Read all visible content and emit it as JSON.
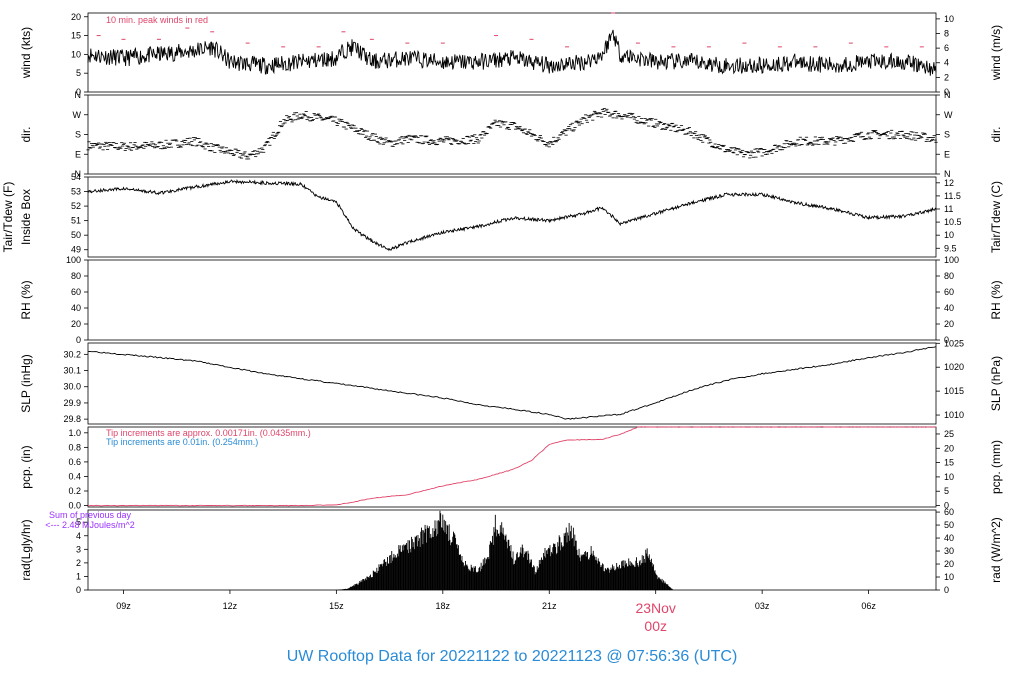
{
  "chart_data": {
    "type": "line",
    "title": "UW Rooftop Data for 20221122  to  20221123 @ 07:56:36  (UTC)",
    "x_axis": {
      "tick_labels": [
        "09z",
        "12z",
        "15z",
        "18z",
        "21z",
        "00z",
        "03z",
        "06z"
      ],
      "tick_hours": [
        9,
        12,
        15,
        18,
        21,
        24,
        27,
        30
      ],
      "range_hours": [
        8.0,
        31.9
      ],
      "date_label": "23Nov",
      "date_sub_label": "00z"
    },
    "panels": [
      {
        "id": "wind",
        "left_label": "wind (kts)",
        "right_label": "wind (m/s)",
        "left_ylim": [
          0,
          21
        ],
        "left_ticks": [
          0,
          5,
          10,
          15,
          20
        ],
        "right_ticks": [
          0,
          2,
          4,
          6,
          8,
          10
        ],
        "right_factor": 0.5144,
        "annotation": "10 min. peak winds in red",
        "annotation_color": "#e0456a",
        "series_color": "#000000",
        "peak_color": "#e0456a",
        "x": [
          8.0,
          9.0,
          10.0,
          11.0,
          11.5,
          12.0,
          13.0,
          14.0,
          15.0,
          15.2,
          15.5,
          16.0,
          17.0,
          18.0,
          19.0,
          20.0,
          21.0,
          22.0,
          22.5,
          22.8,
          23.0,
          24.0,
          25.0,
          26.0,
          27.0,
          28.0,
          29.0,
          30.0,
          31.0,
          31.9
        ],
        "y": [
          10,
          9,
          10,
          11,
          12,
          8,
          7,
          8,
          9,
          11,
          12,
          8,
          9,
          8,
          8,
          9,
          7,
          8,
          10,
          16,
          10,
          8,
          8,
          7,
          7,
          8,
          7,
          8,
          8,
          6
        ],
        "peaks_x": [
          8.3,
          9.0,
          10.0,
          10.8,
          11.5,
          12.5,
          13.5,
          14.5,
          15.2,
          16.0,
          17.0,
          18.0,
          19.5,
          20.5,
          21.5,
          22.8,
          23.5,
          24.5,
          25.5,
          26.5,
          27.5,
          28.5,
          29.5,
          30.5,
          31.5
        ],
        "peaks_y": [
          15,
          14,
          14,
          17,
          16,
          13,
          12,
          12,
          16,
          14,
          13,
          13,
          15,
          14,
          12,
          21,
          13,
          12,
          12,
          13,
          12,
          12,
          13,
          12,
          12
        ]
      },
      {
        "id": "dir",
        "left_label": "dir.",
        "right_label": "dir.",
        "ylim": [
          0,
          360
        ],
        "tick_values": [
          0,
          90,
          180,
          270,
          360
        ],
        "tick_labels": [
          "N",
          "E",
          "S",
          "W",
          "N"
        ],
        "series_color": "#000000",
        "x": [
          8.0,
          9.0,
          10.0,
          11.0,
          11.5,
          12.0,
          12.5,
          13.0,
          13.5,
          14.0,
          15.0,
          16.0,
          16.5,
          17.0,
          18.0,
          19.0,
          19.5,
          20.0,
          21.0,
          22.0,
          22.5,
          23.0,
          24.0,
          25.0,
          26.0,
          26.5,
          27.0,
          28.0,
          29.0,
          30.0,
          31.0,
          31.9
        ],
        "y": [
          130,
          125,
          130,
          150,
          120,
          100,
          80,
          120,
          240,
          270,
          240,
          170,
          140,
          160,
          150,
          160,
          230,
          220,
          140,
          250,
          280,
          270,
          230,
          190,
          110,
          90,
          100,
          150,
          150,
          180,
          180,
          160
        ]
      },
      {
        "id": "temp",
        "left_label": "Tair/Tdew (F)",
        "left_sub_label": "Inside Box",
        "right_label": "Tair/Tdew (C)",
        "left_ylim": [
          48.5,
          54
        ],
        "left_ticks": [
          49,
          50,
          51,
          52,
          53,
          54
        ],
        "right_ticks": [
          9.5,
          10,
          10.5,
          11,
          11.5,
          12
        ],
        "series_color": "#000000",
        "x": [
          8.0,
          9.0,
          10.0,
          11.0,
          12.0,
          13.0,
          14.0,
          14.5,
          15.0,
          15.5,
          16.0,
          16.5,
          17.0,
          18.0,
          19.0,
          20.0,
          21.0,
          22.0,
          22.5,
          23.0,
          24.0,
          25.0,
          26.0,
          27.0,
          28.0,
          29.0,
          30.0,
          31.0,
          31.9
        ],
        "y": [
          53.0,
          53.2,
          52.9,
          53.3,
          53.7,
          53.6,
          53.5,
          52.6,
          52.3,
          50.4,
          49.6,
          49.0,
          49.5,
          50.2,
          50.6,
          51.2,
          51.0,
          51.5,
          51.9,
          50.8,
          51.5,
          52.2,
          52.8,
          52.8,
          52.2,
          51.8,
          51.2,
          51.3,
          51.8
        ]
      },
      {
        "id": "rh",
        "left_label": "RH (%)",
        "right_label": "RH (%)",
        "ylim": [
          0,
          100
        ],
        "ticks": [
          0,
          20,
          40,
          60,
          80,
          100
        ],
        "x": [],
        "y": []
      },
      {
        "id": "slp",
        "left_label": "SLP (inHg)",
        "right_label": "SLP (hPa)",
        "left_ylim": [
          29.77,
          30.27
        ],
        "left_ticks": [
          29.8,
          29.9,
          30.0,
          30.1,
          30.2
        ],
        "right_ticks": [
          1010,
          1015,
          1020,
          1025
        ],
        "series_color": "#000000",
        "x": [
          8.0,
          9.0,
          10.0,
          11.0,
          12.0,
          13.0,
          14.0,
          15.0,
          16.0,
          17.0,
          18.0,
          19.0,
          20.0,
          21.0,
          21.5,
          22.0,
          23.0,
          24.0,
          25.0,
          26.0,
          27.0,
          28.0,
          29.0,
          30.0,
          31.0,
          31.9
        ],
        "y": [
          30.22,
          30.2,
          30.18,
          30.16,
          30.12,
          30.08,
          30.05,
          30.02,
          29.99,
          29.96,
          29.93,
          29.89,
          29.86,
          29.83,
          29.8,
          29.81,
          29.83,
          29.9,
          29.98,
          30.04,
          30.08,
          30.11,
          30.14,
          30.18,
          30.21,
          30.25
        ]
      },
      {
        "id": "pcp",
        "left_label": "pcp. (in)",
        "right_label": "pcp. (mm)",
        "left_ylim": [
          -0.02,
          1.08
        ],
        "left_ticks": [
          0.0,
          0.2,
          0.4,
          0.6,
          0.8,
          1.0
        ],
        "right_ticks": [
          0,
          5,
          10,
          15,
          20,
          25
        ],
        "annotation_1": "Tip increments are approx. 0.00171in. (0.0435mm.)",
        "annotation_1_color": "#e0456a",
        "annotation_2": "Tip increments are 0.01in. (0.254mm.)",
        "annotation_2_color": "#2a8bd6",
        "series_color": "#e0456a",
        "x": [
          8.0,
          12.0,
          14.0,
          15.0,
          15.5,
          16.0,
          17.0,
          18.0,
          19.0,
          20.0,
          20.5,
          21.0,
          21.5,
          22.5,
          23.0,
          23.5,
          25.0,
          31.9
        ],
        "y": [
          0.0,
          0.0,
          0.0,
          0.01,
          0.05,
          0.1,
          0.15,
          0.27,
          0.36,
          0.5,
          0.62,
          0.84,
          0.9,
          0.91,
          0.98,
          1.08,
          1.08,
          1.08
        ]
      },
      {
        "id": "rad",
        "left_label": "rad(Lgly/hr)",
        "right_label": "rad (W/m^2)",
        "left_ylim": [
          0,
          5.9
        ],
        "left_ticks": [
          0,
          1,
          2,
          3,
          4,
          5
        ],
        "right_ticks": [
          0,
          10,
          20,
          30,
          40,
          50,
          60
        ],
        "annotation_1": "Sum of previous day",
        "annotation_2": "<--- 2.48 MJoules/m^2",
        "annotation_color": "#9b30ff",
        "series_color": "#000000",
        "x": [
          15.0,
          15.3,
          15.6,
          16.0,
          16.5,
          17.0,
          17.5,
          18.0,
          18.3,
          18.6,
          19.0,
          19.3,
          19.5,
          19.7,
          20.0,
          20.3,
          20.6,
          20.9,
          21.2,
          21.6,
          21.9,
          22.2,
          22.6,
          23.0,
          23.3,
          23.6,
          23.8,
          24.0,
          24.5
        ],
        "y": [
          0.0,
          0.1,
          0.5,
          1.2,
          2.5,
          3.5,
          4.5,
          5.5,
          4.0,
          2.0,
          1.5,
          3.0,
          5.3,
          4.5,
          2.5,
          3.2,
          1.5,
          3.0,
          3.5,
          4.8,
          2.5,
          3.0,
          1.5,
          2.0,
          2.2,
          2.3,
          3.0,
          1.2,
          0.0
        ]
      }
    ]
  }
}
